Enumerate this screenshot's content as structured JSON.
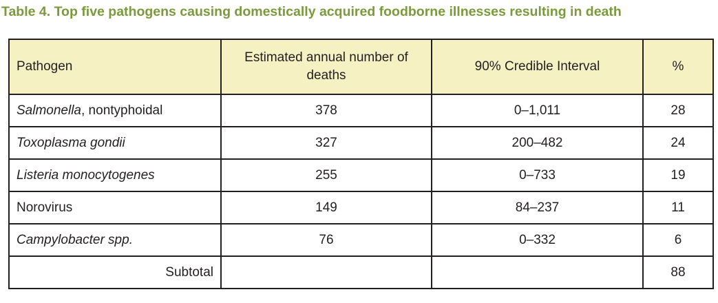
{
  "caption": "Table 4.  Top five pathogens causing domestically acquired foodborne illnesses resulting in death",
  "colors": {
    "caption": "#7a9a3c",
    "header_bg": "#f5f1c2",
    "border": "#231f20"
  },
  "table": {
    "headers": [
      "Pathogen",
      "Estimated annual number of deaths",
      "90% Credible Interval",
      "%"
    ],
    "rows": [
      {
        "pathogen_italic": "Salmonella",
        "pathogen_rest": ", nontyphoidal",
        "deaths": "378",
        "interval": "0–1,011",
        "percent": "28"
      },
      {
        "pathogen_italic": "Toxoplasma gondii",
        "pathogen_rest": "",
        "deaths": "327",
        "interval": "200–482",
        "percent": "24"
      },
      {
        "pathogen_italic": "Listeria monocytogenes",
        "pathogen_rest": "",
        "deaths": "255",
        "interval": "0–733",
        "percent": "19"
      },
      {
        "pathogen_italic": "",
        "pathogen_rest": "Norovirus",
        "deaths": "149",
        "interval": "84–237",
        "percent": "11"
      },
      {
        "pathogen_italic": "Campylobacter spp.",
        "pathogen_rest": "",
        "deaths": "76",
        "interval": "0–332",
        "percent": "6"
      }
    ],
    "subtotal": {
      "label": "Subtotal",
      "percent": "88"
    }
  }
}
